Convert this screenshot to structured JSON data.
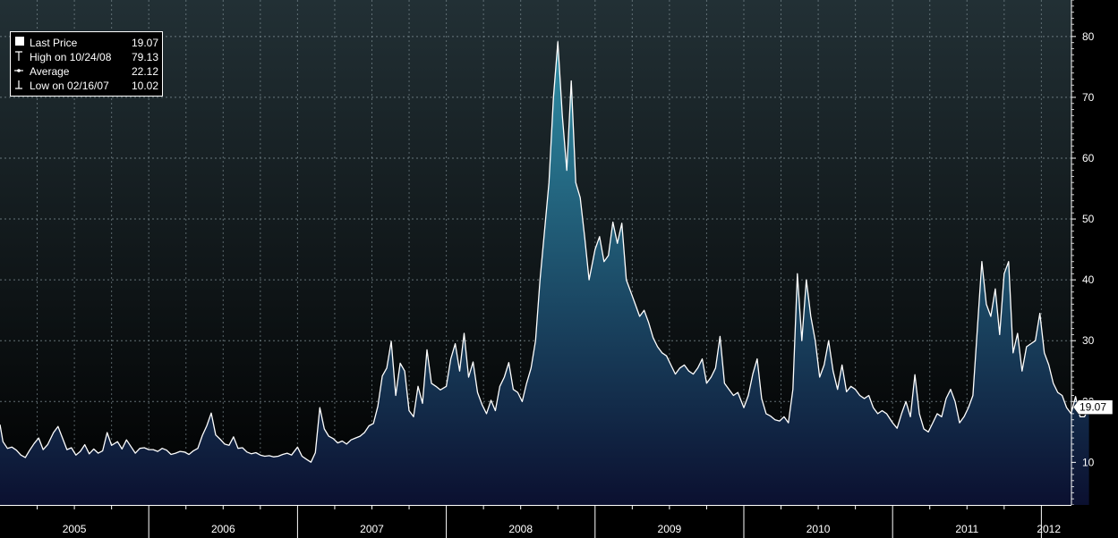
{
  "chart_data": {
    "type": "area",
    "title": "",
    "xlabel": "",
    "ylabel": "",
    "ylim": [
      3,
      86
    ],
    "yticks": [
      10,
      20,
      30,
      40,
      50,
      60,
      70,
      80
    ],
    "xlim": [
      2005.0,
      2012.1
    ],
    "x_tick_labels": [
      "2005",
      "2006",
      "2007",
      "2008",
      "2009",
      "2010",
      "2011",
      "2012"
    ],
    "grid": true,
    "legend_position": "top-left",
    "colors": {
      "background_top": "#223035",
      "background_bottom": "#000000",
      "line": "#ffffff",
      "area_top": "#2f8fa6",
      "area_bottom": "#0b1030",
      "grid": "#8a9aa0",
      "last_price_tag": "#ffffff"
    },
    "legend": [
      {
        "icon": "filled-square-icon",
        "label": "Last Price",
        "value": "19.07"
      },
      {
        "icon": "high-marker-icon",
        "label": "High on 10/24/08",
        "value": "79.13"
      },
      {
        "icon": "average-marker-icon",
        "label": "Average",
        "value": "22.12"
      },
      {
        "icon": "low-marker-icon",
        "label": "Low on 02/16/07",
        "value": "10.02"
      }
    ],
    "last_value_label": "19.07",
    "series": [
      {
        "values": [
          [
            2005.0,
            16.2
          ],
          [
            2005.02,
            13.4
          ],
          [
            2005.05,
            12.3
          ],
          [
            2005.08,
            12.5
          ],
          [
            2005.11,
            12.0
          ],
          [
            2005.14,
            11.2
          ],
          [
            2005.17,
            10.8
          ],
          [
            2005.2,
            12.0
          ],
          [
            2005.23,
            13.1
          ],
          [
            2005.26,
            14.0
          ],
          [
            2005.29,
            12.1
          ],
          [
            2005.32,
            12.9
          ],
          [
            2005.36,
            14.9
          ],
          [
            2005.39,
            15.9
          ],
          [
            2005.42,
            14.0
          ],
          [
            2005.45,
            12.1
          ],
          [
            2005.48,
            12.4
          ],
          [
            2005.51,
            11.2
          ],
          [
            2005.54,
            11.8
          ],
          [
            2005.57,
            12.9
          ],
          [
            2005.6,
            11.4
          ],
          [
            2005.63,
            12.2
          ],
          [
            2005.66,
            11.5
          ],
          [
            2005.69,
            11.9
          ],
          [
            2005.72,
            14.9
          ],
          [
            2005.75,
            12.8
          ],
          [
            2005.79,
            13.4
          ],
          [
            2005.82,
            12.2
          ],
          [
            2005.85,
            13.7
          ],
          [
            2005.88,
            12.6
          ],
          [
            2005.91,
            11.5
          ],
          [
            2005.94,
            12.3
          ],
          [
            2005.97,
            12.4
          ],
          [
            2006.0,
            12.1
          ],
          [
            2006.03,
            12.1
          ],
          [
            2006.06,
            11.8
          ],
          [
            2006.09,
            12.3
          ],
          [
            2006.12,
            12.0
          ],
          [
            2006.15,
            11.3
          ],
          [
            2006.18,
            11.5
          ],
          [
            2006.21,
            11.8
          ],
          [
            2006.24,
            11.7
          ],
          [
            2006.27,
            11.3
          ],
          [
            2006.3,
            11.9
          ],
          [
            2006.33,
            12.3
          ],
          [
            2006.36,
            14.4
          ],
          [
            2006.39,
            16.0
          ],
          [
            2006.42,
            18.1
          ],
          [
            2006.45,
            14.5
          ],
          [
            2006.48,
            13.8
          ],
          [
            2006.51,
            13.0
          ],
          [
            2006.54,
            12.8
          ],
          [
            2006.57,
            14.2
          ],
          [
            2006.6,
            12.3
          ],
          [
            2006.63,
            12.4
          ],
          [
            2006.66,
            11.7
          ],
          [
            2006.69,
            11.4
          ],
          [
            2006.72,
            11.6
          ],
          [
            2006.75,
            11.2
          ],
          [
            2006.78,
            11.0
          ],
          [
            2006.81,
            11.1
          ],
          [
            2006.84,
            10.9
          ],
          [
            2006.87,
            11.0
          ],
          [
            2006.9,
            11.3
          ],
          [
            2006.93,
            11.5
          ],
          [
            2006.96,
            11.2
          ],
          [
            2007.0,
            12.5
          ],
          [
            2007.03,
            11.0
          ],
          [
            2007.06,
            10.5
          ],
          [
            2007.09,
            10.02
          ],
          [
            2007.12,
            11.6
          ],
          [
            2007.15,
            19.0
          ],
          [
            2007.18,
            15.5
          ],
          [
            2007.21,
            14.3
          ],
          [
            2007.24,
            13.9
          ],
          [
            2007.27,
            13.2
          ],
          [
            2007.3,
            13.5
          ],
          [
            2007.33,
            13.0
          ],
          [
            2007.36,
            13.7
          ],
          [
            2007.39,
            14.0
          ],
          [
            2007.42,
            14.3
          ],
          [
            2007.45,
            14.9
          ],
          [
            2007.48,
            16.0
          ],
          [
            2007.51,
            16.4
          ],
          [
            2007.54,
            19.2
          ],
          [
            2007.57,
            24.2
          ],
          [
            2007.6,
            25.5
          ],
          [
            2007.63,
            29.9
          ],
          [
            2007.66,
            21.0
          ],
          [
            2007.69,
            26.3
          ],
          [
            2007.72,
            25.0
          ],
          [
            2007.75,
            18.5
          ],
          [
            2007.78,
            17.5
          ],
          [
            2007.81,
            22.5
          ],
          [
            2007.84,
            19.7
          ],
          [
            2007.87,
            28.5
          ],
          [
            2007.9,
            23.0
          ],
          [
            2007.93,
            22.5
          ],
          [
            2007.96,
            21.9
          ],
          [
            2008.0,
            22.5
          ],
          [
            2008.03,
            27.0
          ],
          [
            2008.06,
            29.5
          ],
          [
            2008.09,
            25.0
          ],
          [
            2008.12,
            31.2
          ],
          [
            2008.15,
            24.0
          ],
          [
            2008.18,
            26.5
          ],
          [
            2008.21,
            21.5
          ],
          [
            2008.24,
            19.5
          ],
          [
            2008.27,
            18.0
          ],
          [
            2008.3,
            20.2
          ],
          [
            2008.33,
            18.5
          ],
          [
            2008.36,
            22.5
          ],
          [
            2008.39,
            24.0
          ],
          [
            2008.42,
            26.4
          ],
          [
            2008.45,
            22.0
          ],
          [
            2008.48,
            21.5
          ],
          [
            2008.51,
            20.0
          ],
          [
            2008.54,
            23.0
          ],
          [
            2008.57,
            25.5
          ],
          [
            2008.6,
            30.0
          ],
          [
            2008.63,
            40.0
          ],
          [
            2008.66,
            48.0
          ],
          [
            2008.69,
            56.0
          ],
          [
            2008.72,
            70.0
          ],
          [
            2008.75,
            79.13
          ],
          [
            2008.78,
            67.0
          ],
          [
            2008.81,
            58.0
          ],
          [
            2008.84,
            72.7
          ],
          [
            2008.87,
            56.0
          ],
          [
            2008.9,
            53.5
          ],
          [
            2008.93,
            47.0
          ],
          [
            2008.96,
            40.0
          ],
          [
            2009.0,
            45.0
          ],
          [
            2009.03,
            47.1
          ],
          [
            2009.06,
            43.0
          ],
          [
            2009.09,
            44.0
          ],
          [
            2009.12,
            49.5
          ],
          [
            2009.15,
            46.0
          ],
          [
            2009.18,
            49.3
          ],
          [
            2009.21,
            40.0
          ],
          [
            2009.24,
            38.0
          ],
          [
            2009.27,
            36.0
          ],
          [
            2009.3,
            34.0
          ],
          [
            2009.33,
            35.0
          ],
          [
            2009.36,
            33.0
          ],
          [
            2009.39,
            30.5
          ],
          [
            2009.42,
            29.0
          ],
          [
            2009.45,
            28.0
          ],
          [
            2009.48,
            27.5
          ],
          [
            2009.51,
            26.0
          ],
          [
            2009.54,
            24.5
          ],
          [
            2009.57,
            25.5
          ],
          [
            2009.6,
            26.0
          ],
          [
            2009.63,
            25.0
          ],
          [
            2009.66,
            24.5
          ],
          [
            2009.69,
            25.5
          ],
          [
            2009.72,
            27.0
          ],
          [
            2009.75,
            23.0
          ],
          [
            2009.78,
            24.0
          ],
          [
            2009.81,
            25.5
          ],
          [
            2009.84,
            30.7
          ],
          [
            2009.87,
            23.0
          ],
          [
            2009.9,
            22.0
          ],
          [
            2009.93,
            21.0
          ],
          [
            2009.96,
            21.5
          ],
          [
            2010.0,
            19.0
          ],
          [
            2010.03,
            21.0
          ],
          [
            2010.06,
            24.5
          ],
          [
            2010.09,
            27.0
          ],
          [
            2010.12,
            20.5
          ],
          [
            2010.15,
            18.0
          ],
          [
            2010.18,
            17.6
          ],
          [
            2010.21,
            17.0
          ],
          [
            2010.24,
            16.8
          ],
          [
            2010.27,
            17.5
          ],
          [
            2010.3,
            16.5
          ],
          [
            2010.33,
            22.0
          ],
          [
            2010.36,
            41.0
          ],
          [
            2010.39,
            30.0
          ],
          [
            2010.42,
            40.0
          ],
          [
            2010.45,
            34.0
          ],
          [
            2010.48,
            30.0
          ],
          [
            2010.51,
            24.0
          ],
          [
            2010.54,
            26.0
          ],
          [
            2010.57,
            30.0
          ],
          [
            2010.6,
            25.0
          ],
          [
            2010.63,
            22.0
          ],
          [
            2010.66,
            26.0
          ],
          [
            2010.69,
            21.6
          ],
          [
            2010.72,
            22.5
          ],
          [
            2010.75,
            22.0
          ],
          [
            2010.78,
            21.0
          ],
          [
            2010.81,
            20.5
          ],
          [
            2010.84,
            21.0
          ],
          [
            2010.87,
            19.0
          ],
          [
            2010.9,
            18.0
          ],
          [
            2010.93,
            18.5
          ],
          [
            2010.96,
            18.0
          ],
          [
            2011.0,
            16.5
          ],
          [
            2011.03,
            15.6
          ],
          [
            2011.06,
            18.0
          ],
          [
            2011.09,
            20.0
          ],
          [
            2011.12,
            17.5
          ],
          [
            2011.15,
            24.4
          ],
          [
            2011.18,
            18.0
          ],
          [
            2011.21,
            15.5
          ],
          [
            2011.24,
            15.0
          ],
          [
            2011.27,
            16.5
          ],
          [
            2011.3,
            18.0
          ],
          [
            2011.33,
            17.5
          ],
          [
            2011.36,
            20.5
          ],
          [
            2011.39,
            22.0
          ],
          [
            2011.42,
            20.0
          ],
          [
            2011.45,
            16.5
          ],
          [
            2011.48,
            17.5
          ],
          [
            2011.51,
            19.0
          ],
          [
            2011.54,
            21.0
          ],
          [
            2011.57,
            32.0
          ],
          [
            2011.6,
            43.0
          ],
          [
            2011.63,
            36.0
          ],
          [
            2011.66,
            34.0
          ],
          [
            2011.69,
            38.5
          ],
          [
            2011.72,
            31.0
          ],
          [
            2011.75,
            41.0
          ],
          [
            2011.78,
            43.0
          ],
          [
            2011.81,
            28.0
          ],
          [
            2011.84,
            31.2
          ],
          [
            2011.87,
            25.0
          ],
          [
            2011.9,
            29.0
          ],
          [
            2011.93,
            29.5
          ],
          [
            2011.96,
            30.0
          ],
          [
            2011.99,
            34.5
          ],
          [
            2012.02,
            28.0
          ],
          [
            2012.05,
            26.0
          ],
          [
            2012.08,
            23.0
          ],
          [
            2012.11,
            21.5
          ],
          [
            2012.14,
            21.0
          ],
          [
            2012.17,
            19.0
          ],
          [
            2012.2,
            18.0
          ],
          [
            2012.23,
            20.8
          ],
          [
            2012.26,
            17.5
          ],
          [
            2012.29,
            17.5
          ],
          [
            2012.32,
            19.07
          ]
        ]
      }
    ]
  }
}
